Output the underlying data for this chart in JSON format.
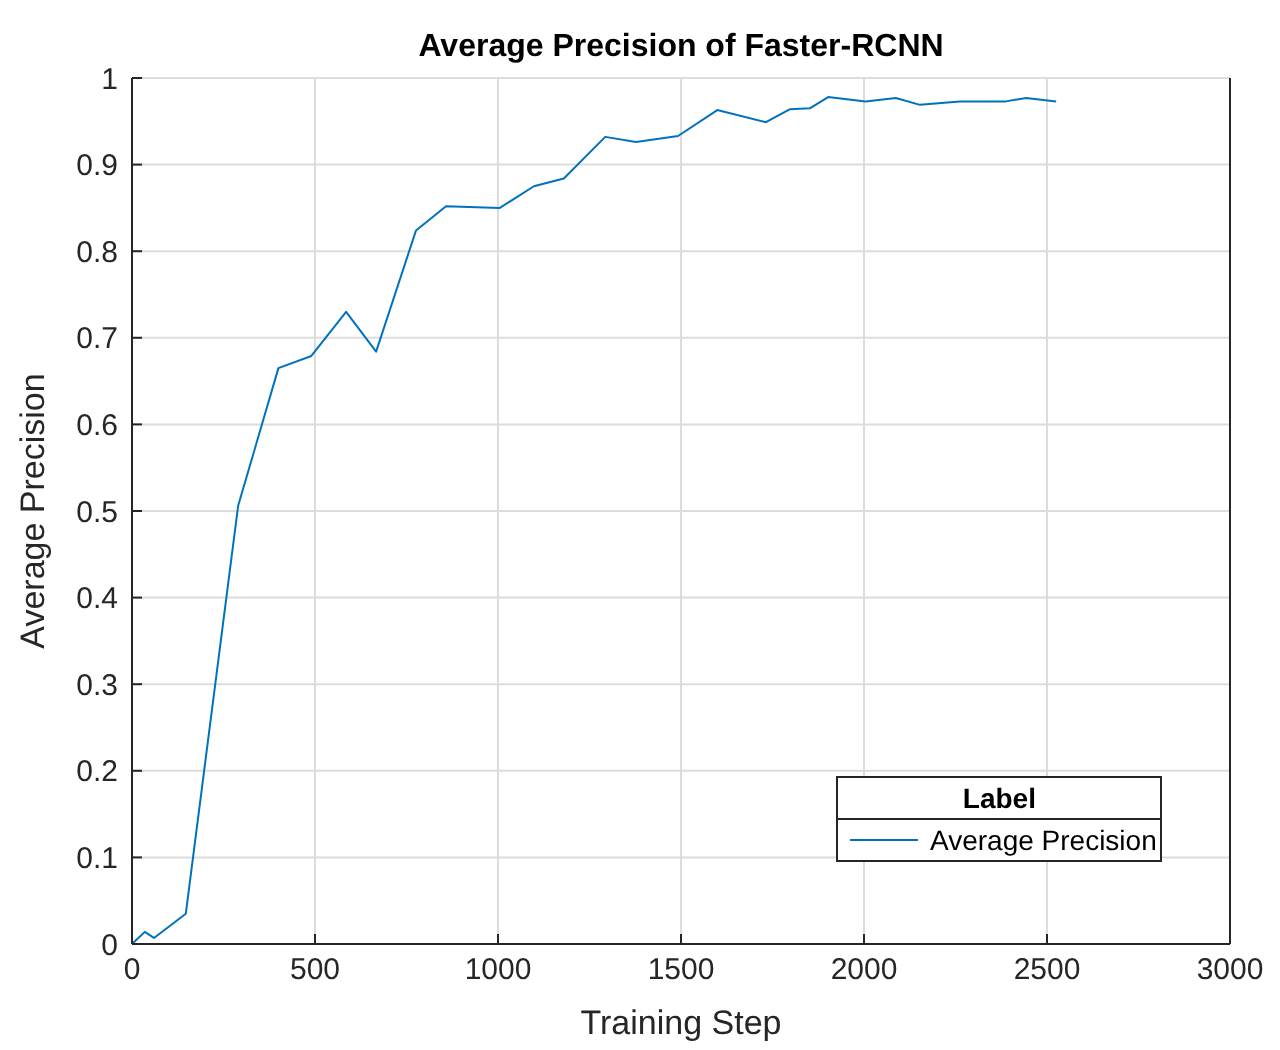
{
  "chart_data": {
    "type": "line",
    "title": "Average Precision of Faster-RCNN",
    "xlabel": "Training Step",
    "ylabel": "Average Precision",
    "legend_title": "Label",
    "x": [
      0,
      35,
      60,
      147,
      290,
      400,
      490,
      585,
      667,
      776,
      858,
      1005,
      1098,
      1180,
      1293,
      1377,
      1492,
      1599,
      1732,
      1798,
      1852,
      1902,
      2004,
      2087,
      2153,
      2262,
      2388,
      2443,
      2525
    ],
    "series": [
      {
        "name": "Average Precision",
        "color": "#0072bd",
        "values": [
          0.0,
          0.014,
          0.007,
          0.035,
          0.506,
          0.665,
          0.679,
          0.73,
          0.684,
          0.824,
          0.852,
          0.85,
          0.875,
          0.884,
          0.932,
          0.926,
          0.933,
          0.963,
          0.949,
          0.964,
          0.965,
          0.978,
          0.973,
          0.977,
          0.969,
          0.973,
          0.973,
          0.977,
          0.973
        ]
      }
    ],
    "xlim": [
      0,
      3000
    ],
    "xticks": [
      0,
      500,
      1000,
      1500,
      2000,
      2500,
      3000
    ],
    "ylim": [
      0,
      1
    ],
    "yticks": [
      0,
      0.1,
      0.2,
      0.3,
      0.4,
      0.5,
      0.6,
      0.7,
      0.8,
      0.9,
      1
    ],
    "grid": true,
    "legend": "bottom right",
    "marker": "none",
    "line_style": "solid"
  }
}
